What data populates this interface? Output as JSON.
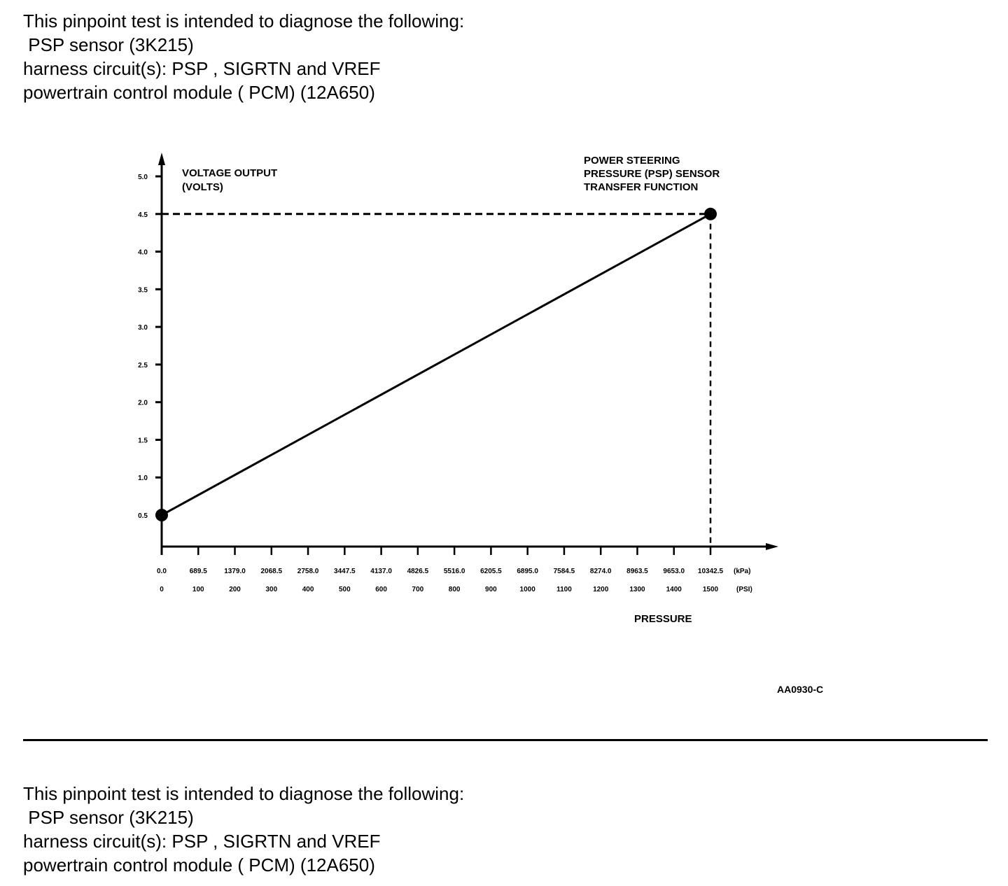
{
  "intro_top": {
    "lines": [
      "This pinpoint test is intended to diagnose the following:",
      " PSP sensor (3K215)",
      "harness circuit(s): PSP , SIGRTN and VREF",
      "powertrain control module ( PCM) (12A650)"
    ]
  },
  "intro_bottom": {
    "lines": [
      "This pinpoint test is intended to diagnose the following:",
      " PSP sensor (3K215)",
      "harness circuit(s): PSP , SIGRTN and VREF",
      "powertrain control module ( PCM) (12A650)"
    ]
  },
  "chart_data": {
    "type": "line",
    "title_lines": [
      "POWER STEERING",
      "PRESSURE (PSP) SENSOR",
      "TRANSFER FUNCTION"
    ],
    "ylabel_lines": [
      "VOLTAGE OUTPUT",
      "(VOLTS)"
    ],
    "xlabel": "PRESSURE",
    "figure_id": "AA0930-C",
    "y_ticks": [
      "0.5",
      "1.0",
      "1.5",
      "2.0",
      "2.5",
      "3.0",
      "3.5",
      "4.0",
      "4.5",
      "5.0"
    ],
    "y_tick_values": [
      0.5,
      1.0,
      1.5,
      2.0,
      2.5,
      3.0,
      3.5,
      4.0,
      4.5,
      5.0
    ],
    "x_ticks_psi": [
      "0",
      "100",
      "200",
      "300",
      "400",
      "500",
      "600",
      "700",
      "800",
      "900",
      "1000",
      "1100",
      "1200",
      "1300",
      "1400",
      "1500"
    ],
    "x_tick_values_psi": [
      0,
      100,
      200,
      300,
      400,
      500,
      600,
      700,
      800,
      900,
      1000,
      1100,
      1200,
      1300,
      1400,
      1500
    ],
    "x_ticks_kpa": [
      "0.0",
      "689.5",
      "1379.0",
      "2068.5",
      "2758.0",
      "3447.5",
      "4137.0",
      "4826.5",
      "5516.0",
      "6205.5",
      "6895.0",
      "7584.5",
      "8274.0",
      "8963.5",
      "9653.0",
      "10342.5"
    ],
    "x_unit_kpa": "(kPa)",
    "x_unit_psi": "(PSI)",
    "xlim_psi": [
      0,
      1500
    ],
    "ylim": [
      0,
      5.0
    ],
    "points": [
      {
        "psi": 0,
        "volts": 0.5
      },
      {
        "psi": 1500,
        "volts": 4.5
      }
    ],
    "reference_lines": {
      "volts": 4.5,
      "psi": 1500,
      "style": "dashed"
    },
    "grid": false
  }
}
